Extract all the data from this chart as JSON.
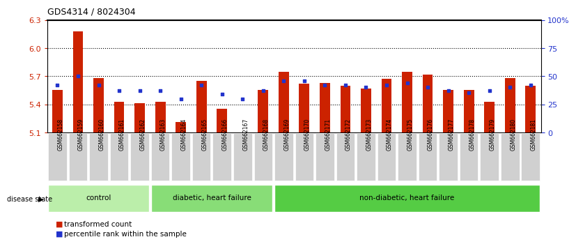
{
  "title": "GDS4314 / 8024304",
  "samples": [
    "GSM662158",
    "GSM662159",
    "GSM662160",
    "GSM662161",
    "GSM662162",
    "GSM662163",
    "GSM662164",
    "GSM662165",
    "GSM662166",
    "GSM662167",
    "GSM662168",
    "GSM662169",
    "GSM662170",
    "GSM662171",
    "GSM662172",
    "GSM662173",
    "GSM662174",
    "GSM662175",
    "GSM662176",
    "GSM662177",
    "GSM662178",
    "GSM662179",
    "GSM662180",
    "GSM662181"
  ],
  "red_values": [
    5.55,
    6.18,
    5.68,
    5.43,
    5.41,
    5.43,
    5.21,
    5.65,
    5.35,
    5.1,
    5.55,
    5.75,
    5.62,
    5.63,
    5.6,
    5.57,
    5.67,
    5.75,
    5.72,
    5.55,
    5.55,
    5.43,
    5.68,
    5.6
  ],
  "blue_percentiles": [
    42,
    50,
    42,
    37,
    37,
    37,
    30,
    42,
    34,
    30,
    37,
    46,
    46,
    42,
    42,
    40,
    42,
    44,
    40,
    37,
    35,
    37,
    40,
    42
  ],
  "ylim_left": [
    5.1,
    6.3
  ],
  "yticks_left": [
    5.1,
    5.4,
    5.7,
    6.0,
    6.3
  ],
  "yticks_right": [
    0,
    25,
    50,
    75,
    100
  ],
  "right_labels": [
    "0",
    "25",
    "50",
    "75",
    "100%"
  ],
  "bar_color": "#cc2200",
  "blue_color": "#2233cc",
  "groups": [
    {
      "label": "control",
      "start": 0,
      "end": 5,
      "color": "#bbeeaa"
    },
    {
      "label": "diabetic, heart failure",
      "start": 5,
      "end": 11,
      "color": "#88dd77"
    },
    {
      "label": "non-diabetic, heart failure",
      "start": 11,
      "end": 24,
      "color": "#55cc44"
    }
  ],
  "legend_red": "transformed count",
  "legend_blue": "percentile rank within the sample",
  "disease_state_label": "disease state",
  "xlim": [
    -0.5,
    23.5
  ]
}
